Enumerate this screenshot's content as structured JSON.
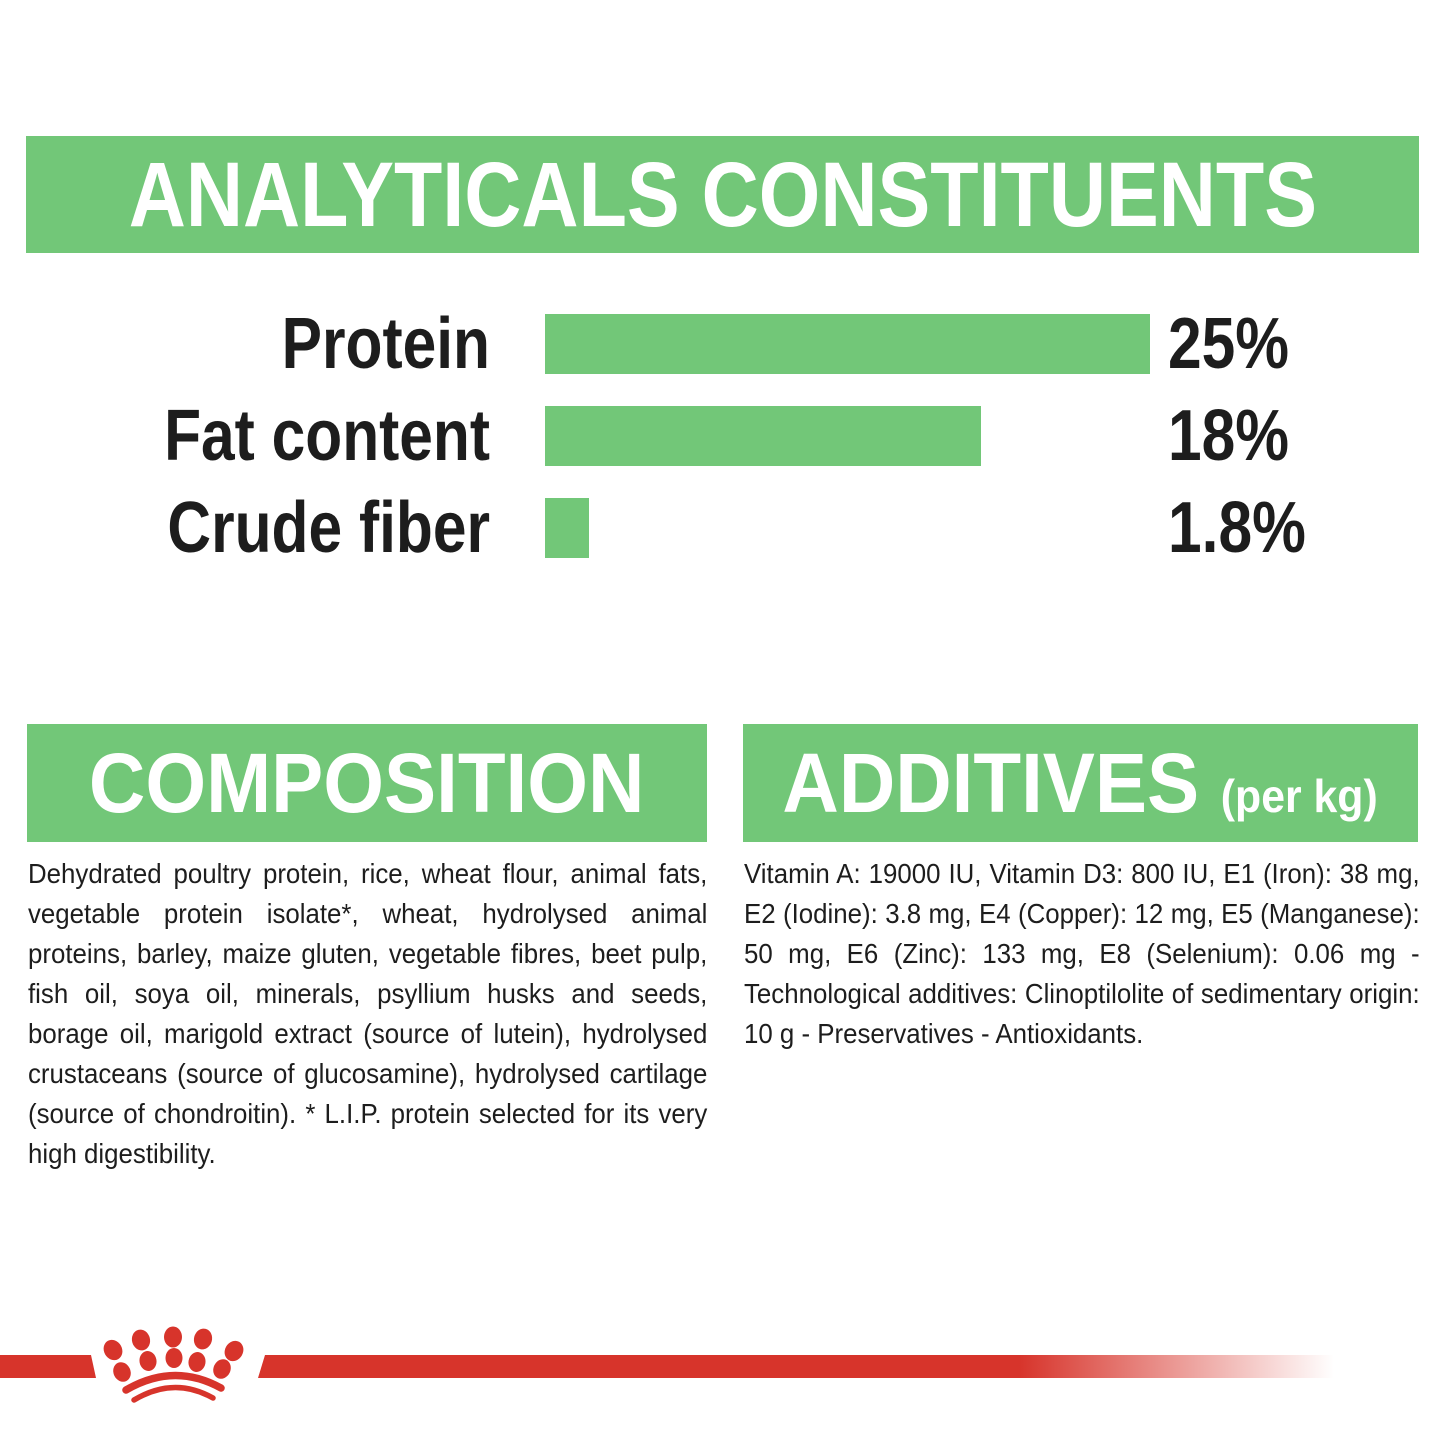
{
  "chart_data": {
    "type": "bar",
    "orientation": "horizontal",
    "title": "ANALYTICALS CONSTITUENTS",
    "categories": [
      "Protein",
      "Fat content",
      "Crude fiber"
    ],
    "values": [
      25,
      18,
      1.8
    ],
    "value_labels": [
      "25%",
      "18%",
      "1.8%"
    ],
    "xlim": [
      0,
      25
    ],
    "grid": false,
    "legend": false,
    "bar_color": "#72C778"
  },
  "composition": {
    "title": "COMPOSITION",
    "text": "Dehydrated poultry protein, rice, wheat flour, animal fats, vegetable protein isolate*, wheat, hydrolysed animal proteins, barley, maize gluten, vegetable fibres, beet pulp, fish oil, soya oil, minerals, psyllium husks and seeds, borage oil, marigold extract (source of lutein), hydrolysed crustaceans (source of glucosamine), hydrolysed cartilage (source of chondroitin). * L.I.P. protein selected for its very high digestibility."
  },
  "additives": {
    "title": "ADDITIVES",
    "unit_label": "(per kg)",
    "text": "Vitamin A: 19000 IU, Vitamin D3: 800 IU, E1 (Iron): 38 mg, E2 (Iodine): 3.8 mg, E4 (Copper): 12 mg, E5 (Manganese): 50 mg, E6 (Zinc): 133 mg, E8 (Selenium): 0.06 mg - Technological additives: Clinoptilolite of sedimentary origin: 10 g - Preservatives - Antioxidants.",
    "vitamin_a_iu": 19000,
    "vitamin_d3_iu": 800,
    "e1_iron_mg": 38,
    "e2_iodine_mg": 3.8,
    "e4_copper_mg": 12,
    "e5_manganese_mg": 50,
    "e6_zinc_mg": 133,
    "e8_selenium_mg": 0.06,
    "clinoptilolite_g": 10
  },
  "footer": {
    "logo": "royal-canin-crown"
  },
  "colors": {
    "green": "#72C778",
    "red": "#D7342B",
    "text": "#1D1D1D"
  }
}
